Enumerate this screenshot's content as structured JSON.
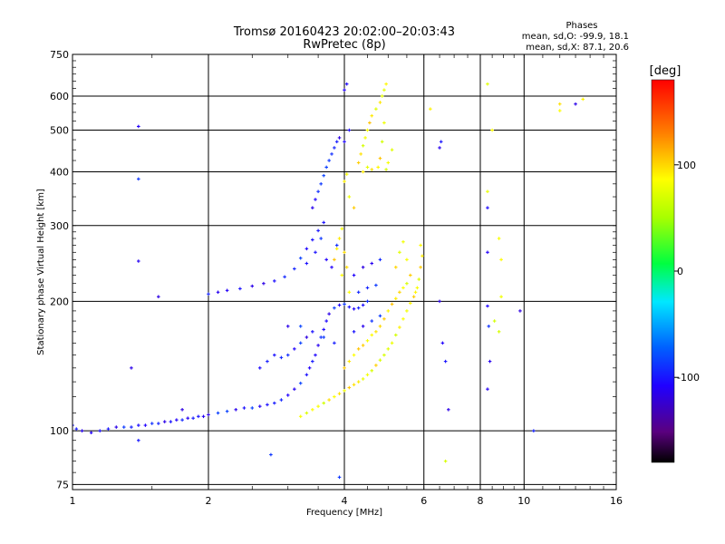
{
  "chart_data": {
    "type": "scatter",
    "title": "Tromsø 20160423 20:02:00–20:03:43",
    "subtitle": "RwPretec (8p)",
    "xlabel": "Frequency [MHz]",
    "ylabel": "Stationary phase Virtual Height [km]",
    "x_scale": "log",
    "y_scale": "log",
    "xlim": [
      1,
      16
    ],
    "ylim": [
      73,
      750
    ],
    "x_ticks": [
      1,
      2,
      4,
      6,
      8,
      10,
      16
    ],
    "x_tick_labels": [
      "1",
      "2",
      "4",
      "6",
      "8",
      "10",
      "16"
    ],
    "y_ticks": [
      75,
      100,
      200,
      300,
      400,
      500,
      600,
      750
    ],
    "y_tick_labels": [
      "75",
      "100",
      "200",
      "300",
      "400",
      "500",
      "600",
      "750"
    ],
    "grid": true,
    "annotation": {
      "heading": "Phases",
      "line1": "mean, sd,O: -99.9, 18.1",
      "line2": "mean, sd,X:  87.1, 20.6"
    },
    "colorbar": {
      "label": "[deg]",
      "range": [
        -180,
        180
      ],
      "ticks": [
        100,
        0,
        -100
      ],
      "tick_labels": [
        "100",
        "0",
        "-100"
      ],
      "colormap": "rainbow-black-purple-blue-cyan-green-yellow-orange-red"
    },
    "series": [
      {
        "mode": "O",
        "phase_mean": -99.9,
        "phase_sd": 18.1,
        "points": [
          [
            1.0,
            103
          ],
          [
            1.02,
            101
          ],
          [
            1.05,
            100
          ],
          [
            1.1,
            99
          ],
          [
            1.15,
            100
          ],
          [
            1.2,
            101
          ],
          [
            1.25,
            102
          ],
          [
            1.3,
            102
          ],
          [
            1.35,
            102
          ],
          [
            1.4,
            103
          ],
          [
            1.45,
            103
          ],
          [
            1.5,
            104
          ],
          [
            1.55,
            104
          ],
          [
            1.6,
            105
          ],
          [
            1.65,
            105
          ],
          [
            1.7,
            106
          ],
          [
            1.75,
            106
          ],
          [
            1.8,
            107
          ],
          [
            1.85,
            107
          ],
          [
            1.9,
            108
          ],
          [
            1.95,
            108
          ],
          [
            2.0,
            109
          ],
          [
            2.1,
            110
          ],
          [
            2.2,
            111
          ],
          [
            2.3,
            112
          ],
          [
            2.4,
            113
          ],
          [
            2.5,
            113
          ],
          [
            2.6,
            114
          ],
          [
            2.7,
            115
          ],
          [
            2.8,
            116
          ],
          [
            2.9,
            118
          ],
          [
            3.0,
            121
          ],
          [
            3.1,
            125
          ],
          [
            3.2,
            129
          ],
          [
            3.3,
            135
          ],
          [
            3.35,
            140
          ],
          [
            3.4,
            145
          ],
          [
            3.45,
            150
          ],
          [
            3.5,
            158
          ],
          [
            3.55,
            165
          ],
          [
            3.6,
            172
          ],
          [
            3.65,
            180
          ],
          [
            3.7,
            187
          ],
          [
            3.8,
            193
          ],
          [
            3.9,
            196
          ],
          [
            4.0,
            197
          ],
          [
            4.1,
            194
          ],
          [
            4.2,
            192
          ],
          [
            4.3,
            193
          ],
          [
            4.4,
            196
          ],
          [
            4.5,
            200
          ],
          [
            2.0,
            208
          ],
          [
            2.1,
            210
          ],
          [
            2.2,
            212
          ],
          [
            2.35,
            214
          ],
          [
            2.5,
            217
          ],
          [
            2.65,
            220
          ],
          [
            2.8,
            223
          ],
          [
            2.95,
            228
          ],
          [
            3.1,
            238
          ],
          [
            3.2,
            252
          ],
          [
            3.3,
            265
          ],
          [
            3.4,
            278
          ],
          [
            3.5,
            292
          ],
          [
            3.6,
            305
          ],
          [
            3.55,
            280
          ],
          [
            3.45,
            260
          ],
          [
            3.3,
            245
          ],
          [
            3.65,
            250
          ],
          [
            3.75,
            240
          ],
          [
            3.85,
            270
          ],
          [
            3.4,
            330
          ],
          [
            3.45,
            345
          ],
          [
            3.5,
            360
          ],
          [
            3.55,
            375
          ],
          [
            3.6,
            392
          ],
          [
            3.65,
            410
          ],
          [
            3.7,
            425
          ],
          [
            3.75,
            440
          ],
          [
            3.8,
            455
          ],
          [
            3.85,
            470
          ],
          [
            3.9,
            480
          ],
          [
            4.0,
            470
          ],
          [
            4.05,
            640
          ],
          [
            4.0,
            620
          ],
          [
            4.1,
            500
          ],
          [
            2.9,
            148
          ],
          [
            3.0,
            150
          ],
          [
            3.1,
            155
          ],
          [
            3.2,
            160
          ],
          [
            3.3,
            165
          ],
          [
            2.6,
            140
          ],
          [
            2.7,
            145
          ],
          [
            2.8,
            150
          ],
          [
            3.0,
            175
          ],
          [
            3.2,
            175
          ],
          [
            3.4,
            170
          ],
          [
            3.6,
            165
          ],
          [
            3.8,
            160
          ],
          [
            4.2,
            170
          ],
          [
            4.4,
            175
          ],
          [
            4.6,
            180
          ],
          [
            4.8,
            185
          ],
          [
            4.2,
            230
          ],
          [
            4.4,
            240
          ],
          [
            4.6,
            245
          ],
          [
            4.8,
            250
          ],
          [
            4.3,
            210
          ],
          [
            4.5,
            215
          ],
          [
            4.7,
            218
          ],
          [
            1.4,
            510
          ],
          [
            1.4,
            385
          ],
          [
            1.4,
            248
          ],
          [
            1.55,
            205
          ],
          [
            1.35,
            140
          ],
          [
            1.75,
            112
          ],
          [
            1.4,
            95
          ],
          [
            2.75,
            88
          ],
          [
            3.9,
            78
          ],
          [
            6.5,
            455
          ],
          [
            6.55,
            470
          ],
          [
            6.5,
            200
          ],
          [
            6.6,
            160
          ],
          [
            6.7,
            145
          ],
          [
            6.8,
            112
          ],
          [
            8.3,
            330
          ],
          [
            8.3,
            260
          ],
          [
            8.3,
            195
          ],
          [
            8.35,
            175
          ],
          [
            8.4,
            145
          ],
          [
            8.3,
            125
          ],
          [
            9.8,
            190
          ],
          [
            10.5,
            100
          ],
          [
            13.0,
            575
          ]
        ]
      },
      {
        "mode": "X",
        "phase_mean": 87.1,
        "phase_sd": 20.6,
        "points": [
          [
            3.2,
            108
          ],
          [
            3.3,
            110
          ],
          [
            3.4,
            112
          ],
          [
            3.5,
            114
          ],
          [
            3.6,
            116
          ],
          [
            3.7,
            118
          ],
          [
            3.8,
            120
          ],
          [
            3.9,
            122
          ],
          [
            4.0,
            124
          ],
          [
            4.1,
            126
          ],
          [
            4.2,
            128
          ],
          [
            4.3,
            130
          ],
          [
            4.4,
            132
          ],
          [
            4.5,
            135
          ],
          [
            4.6,
            138
          ],
          [
            4.7,
            142
          ],
          [
            4.8,
            146
          ],
          [
            4.9,
            150
          ],
          [
            5.0,
            155
          ],
          [
            5.1,
            160
          ],
          [
            5.2,
            167
          ],
          [
            5.3,
            174
          ],
          [
            5.4,
            182
          ],
          [
            5.5,
            190
          ],
          [
            5.6,
            198
          ],
          [
            5.7,
            205
          ],
          [
            5.75,
            210
          ],
          [
            5.8,
            215
          ],
          [
            5.85,
            225
          ],
          [
            5.9,
            240
          ],
          [
            5.95,
            255
          ],
          [
            5.9,
            270
          ],
          [
            4.0,
            140
          ],
          [
            4.1,
            145
          ],
          [
            4.2,
            150
          ],
          [
            4.3,
            155
          ],
          [
            4.4,
            158
          ],
          [
            4.5,
            162
          ],
          [
            4.6,
            167
          ],
          [
            4.7,
            170
          ],
          [
            4.8,
            175
          ],
          [
            4.9,
            182
          ],
          [
            5.0,
            190
          ],
          [
            5.1,
            197
          ],
          [
            5.2,
            203
          ],
          [
            5.3,
            210
          ],
          [
            5.4,
            215
          ],
          [
            5.5,
            220
          ],
          [
            3.8,
            250
          ],
          [
            3.85,
            265
          ],
          [
            3.9,
            280
          ],
          [
            3.95,
            295
          ],
          [
            4.0,
            260
          ],
          [
            4.05,
            240
          ],
          [
            3.95,
            230
          ],
          [
            4.1,
            210
          ],
          [
            4.3,
            420
          ],
          [
            4.35,
            440
          ],
          [
            4.4,
            460
          ],
          [
            4.45,
            480
          ],
          [
            4.5,
            500
          ],
          [
            4.55,
            520
          ],
          [
            4.6,
            540
          ],
          [
            4.7,
            560
          ],
          [
            4.8,
            580
          ],
          [
            4.85,
            600
          ],
          [
            4.9,
            620
          ],
          [
            4.95,
            640
          ],
          [
            4.9,
            520
          ],
          [
            4.85,
            470
          ],
          [
            4.8,
            430
          ],
          [
            4.75,
            410
          ],
          [
            4.95,
            405
          ],
          [
            5.0,
            420
          ],
          [
            5.1,
            450
          ],
          [
            4.4,
            400
          ],
          [
            4.5,
            410
          ],
          [
            4.6,
            405
          ],
          [
            4.1,
            350
          ],
          [
            4.2,
            330
          ],
          [
            4.0,
            380
          ],
          [
            4.05,
            395
          ],
          [
            5.2,
            240
          ],
          [
            5.3,
            260
          ],
          [
            5.4,
            275
          ],
          [
            5.5,
            250
          ],
          [
            5.6,
            230
          ],
          [
            6.2,
            560
          ],
          [
            6.7,
            85
          ],
          [
            8.3,
            640
          ],
          [
            8.5,
            500
          ],
          [
            8.3,
            360
          ],
          [
            8.8,
            280
          ],
          [
            8.9,
            250
          ],
          [
            8.9,
            205
          ],
          [
            8.6,
            180
          ],
          [
            8.8,
            170
          ],
          [
            12.0,
            575
          ],
          [
            12.0,
            555
          ],
          [
            13.5,
            590
          ]
        ]
      }
    ]
  }
}
